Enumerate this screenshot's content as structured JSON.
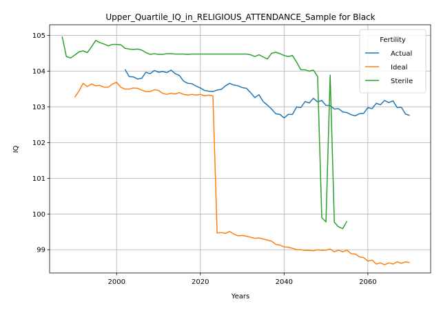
{
  "chart_data": {
    "type": "line",
    "title": "Upper_Quartile_IQ_in_RELIGIOUS_ATTENDANCE_Sample for Black",
    "xlabel": "Years",
    "ylabel": "IQ",
    "xlim": [
      1984,
      2075
    ],
    "ylim": [
      98.35,
      105.3
    ],
    "xticks": [
      2000,
      2020,
      2040,
      2060
    ],
    "yticks": [
      99,
      100,
      101,
      102,
      103,
      104,
      105
    ],
    "grid": true,
    "legend": {
      "title": "Fertility",
      "placement": "top-right"
    },
    "series": [
      {
        "name": "Actual",
        "color": "#1f77b4",
        "points": [
          [
            2002,
            104.05
          ],
          [
            2003,
            103.85
          ],
          [
            2004,
            103.84
          ],
          [
            2005,
            103.78
          ],
          [
            2006,
            103.8
          ],
          [
            2007,
            103.97
          ],
          [
            2008,
            103.93
          ],
          [
            2009,
            104.02
          ],
          [
            2010,
            103.97
          ],
          [
            2011,
            103.99
          ],
          [
            2012,
            103.96
          ],
          [
            2013,
            104.03
          ],
          [
            2014,
            103.93
          ],
          [
            2015,
            103.88
          ],
          [
            2016,
            103.72
          ],
          [
            2017,
            103.66
          ],
          [
            2018,
            103.65
          ],
          [
            2019,
            103.58
          ],
          [
            2020,
            103.53
          ],
          [
            2021,
            103.46
          ],
          [
            2022,
            103.44
          ],
          [
            2023,
            103.43
          ],
          [
            2024,
            103.47
          ],
          [
            2025,
            103.49
          ],
          [
            2026,
            103.59
          ],
          [
            2027,
            103.66
          ],
          [
            2028,
            103.61
          ],
          [
            2029,
            103.59
          ],
          [
            2030,
            103.54
          ],
          [
            2031,
            103.52
          ],
          [
            2032,
            103.4
          ],
          [
            2033,
            103.26
          ],
          [
            2034,
            103.34
          ],
          [
            2035,
            103.15
          ],
          [
            2036,
            103.05
          ],
          [
            2037,
            102.94
          ],
          [
            2038,
            102.81
          ],
          [
            2039,
            102.79
          ],
          [
            2040,
            102.69
          ],
          [
            2041,
            102.79
          ],
          [
            2042,
            102.79
          ],
          [
            2043,
            103.0
          ],
          [
            2044,
            102.98
          ],
          [
            2045,
            103.15
          ],
          [
            2046,
            103.11
          ],
          [
            2047,
            103.24
          ],
          [
            2048,
            103.14
          ],
          [
            2049,
            103.18
          ],
          [
            2050,
            103.04
          ],
          [
            2051,
            103.04
          ],
          [
            2052,
            102.94
          ],
          [
            2053,
            102.95
          ],
          [
            2054,
            102.86
          ],
          [
            2055,
            102.84
          ],
          [
            2056,
            102.78
          ],
          [
            2057,
            102.75
          ],
          [
            2058,
            102.81
          ],
          [
            2059,
            102.82
          ],
          [
            2060,
            102.98
          ],
          [
            2061,
            102.95
          ],
          [
            2062,
            103.1
          ],
          [
            2063,
            103.06
          ],
          [
            2064,
            103.18
          ],
          [
            2065,
            103.12
          ],
          [
            2066,
            103.17
          ],
          [
            2067,
            102.98
          ],
          [
            2068,
            102.99
          ],
          [
            2069,
            102.8
          ],
          [
            2070,
            102.76
          ]
        ]
      },
      {
        "name": "Ideal",
        "color": "#ff7f0e",
        "points": [
          [
            1990,
            103.27
          ],
          [
            1991,
            103.44
          ],
          [
            1992,
            103.66
          ],
          [
            1993,
            103.57
          ],
          [
            1994,
            103.64
          ],
          [
            1995,
            103.59
          ],
          [
            1996,
            103.6
          ],
          [
            1997,
            103.55
          ],
          [
            1998,
            103.55
          ],
          [
            1999,
            103.64
          ],
          [
            2000,
            103.69
          ],
          [
            2001,
            103.55
          ],
          [
            2002,
            103.5
          ],
          [
            2003,
            103.5
          ],
          [
            2004,
            103.53
          ],
          [
            2005,
            103.52
          ],
          [
            2006,
            103.47
          ],
          [
            2007,
            103.43
          ],
          [
            2008,
            103.43
          ],
          [
            2009,
            103.48
          ],
          [
            2010,
            103.46
          ],
          [
            2011,
            103.38
          ],
          [
            2012,
            103.35
          ],
          [
            2013,
            103.38
          ],
          [
            2014,
            103.36
          ],
          [
            2015,
            103.4
          ],
          [
            2016,
            103.35
          ],
          [
            2017,
            103.33
          ],
          [
            2018,
            103.35
          ],
          [
            2019,
            103.33
          ],
          [
            2020,
            103.35
          ],
          [
            2021,
            103.31
          ],
          [
            2022,
            103.33
          ],
          [
            2023,
            103.31
          ],
          [
            2024,
            99.47
          ],
          [
            2025,
            99.48
          ],
          [
            2026,
            99.46
          ],
          [
            2027,
            99.51
          ],
          [
            2028,
            99.44
          ],
          [
            2029,
            99.39
          ],
          [
            2030,
            99.4
          ],
          [
            2031,
            99.38
          ],
          [
            2032,
            99.35
          ],
          [
            2033,
            99.32
          ],
          [
            2034,
            99.33
          ],
          [
            2035,
            99.3
          ],
          [
            2036,
            99.27
          ],
          [
            2037,
            99.24
          ],
          [
            2038,
            99.15
          ],
          [
            2039,
            99.13
          ],
          [
            2040,
            99.08
          ],
          [
            2041,
            99.07
          ],
          [
            2042,
            99.04
          ],
          [
            2043,
            99.0
          ],
          [
            2044,
            99.0
          ],
          [
            2045,
            98.98
          ],
          [
            2046,
            98.98
          ],
          [
            2047,
            98.97
          ],
          [
            2048,
            99.0
          ],
          [
            2049,
            98.98
          ],
          [
            2050,
            98.99
          ],
          [
            2051,
            99.02
          ],
          [
            2052,
            98.94
          ],
          [
            2053,
            98.99
          ],
          [
            2054,
            98.94
          ],
          [
            2055,
            98.99
          ],
          [
            2056,
            98.89
          ],
          [
            2057,
            98.88
          ],
          [
            2058,
            98.8
          ],
          [
            2059,
            98.78
          ],
          [
            2060,
            98.68
          ],
          [
            2061,
            98.71
          ],
          [
            2062,
            98.6
          ],
          [
            2063,
            98.63
          ],
          [
            2064,
            98.58
          ],
          [
            2065,
            98.63
          ],
          [
            2066,
            98.6
          ],
          [
            2067,
            98.66
          ],
          [
            2068,
            98.62
          ],
          [
            2069,
            98.66
          ],
          [
            2070,
            98.64
          ]
        ]
      },
      {
        "name": "Sterile",
        "color": "#2ca02c",
        "points": [
          [
            1987,
            104.97
          ],
          [
            1988,
            104.41
          ],
          [
            1989,
            104.37
          ],
          [
            1990,
            104.45
          ],
          [
            1991,
            104.54
          ],
          [
            1992,
            104.57
          ],
          [
            1993,
            104.52
          ],
          [
            1994,
            104.68
          ],
          [
            1995,
            104.86
          ],
          [
            1996,
            104.8
          ],
          [
            1997,
            104.76
          ],
          [
            1998,
            104.71
          ],
          [
            1999,
            104.75
          ],
          [
            2000,
            104.75
          ],
          [
            2001,
            104.74
          ],
          [
            2002,
            104.64
          ],
          [
            2003,
            104.62
          ],
          [
            2004,
            104.61
          ],
          [
            2005,
            104.62
          ],
          [
            2006,
            104.59
          ],
          [
            2007,
            104.52
          ],
          [
            2008,
            104.47
          ],
          [
            2009,
            104.49
          ],
          [
            2010,
            104.47
          ],
          [
            2011,
            104.47
          ],
          [
            2012,
            104.49
          ],
          [
            2013,
            104.49
          ],
          [
            2014,
            104.48
          ],
          [
            2015,
            104.48
          ],
          [
            2016,
            104.48
          ],
          [
            2017,
            104.47
          ],
          [
            2018,
            104.48
          ],
          [
            2019,
            104.48
          ],
          [
            2020,
            104.48
          ],
          [
            2021,
            104.48
          ],
          [
            2022,
            104.48
          ],
          [
            2023,
            104.48
          ],
          [
            2024,
            104.48
          ],
          [
            2025,
            104.48
          ],
          [
            2026,
            104.48
          ],
          [
            2027,
            104.48
          ],
          [
            2028,
            104.48
          ],
          [
            2029,
            104.48
          ],
          [
            2030,
            104.48
          ],
          [
            2031,
            104.48
          ],
          [
            2032,
            104.46
          ],
          [
            2033,
            104.41
          ],
          [
            2034,
            104.46
          ],
          [
            2035,
            104.4
          ],
          [
            2036,
            104.34
          ],
          [
            2037,
            104.5
          ],
          [
            2038,
            104.53
          ],
          [
            2039,
            104.49
          ],
          [
            2040,
            104.44
          ],
          [
            2041,
            104.41
          ],
          [
            2042,
            104.44
          ],
          [
            2043,
            104.25
          ],
          [
            2044,
            104.04
          ],
          [
            2045,
            104.04
          ],
          [
            2046,
            104.0
          ],
          [
            2047,
            104.03
          ],
          [
            2048,
            103.85
          ],
          [
            2049,
            99.9
          ],
          [
            2050,
            99.78
          ],
          [
            2051,
            103.89
          ],
          [
            2052,
            99.77
          ],
          [
            2053,
            99.64
          ],
          [
            2054,
            99.59
          ],
          [
            2055,
            99.8
          ]
        ]
      }
    ]
  }
}
